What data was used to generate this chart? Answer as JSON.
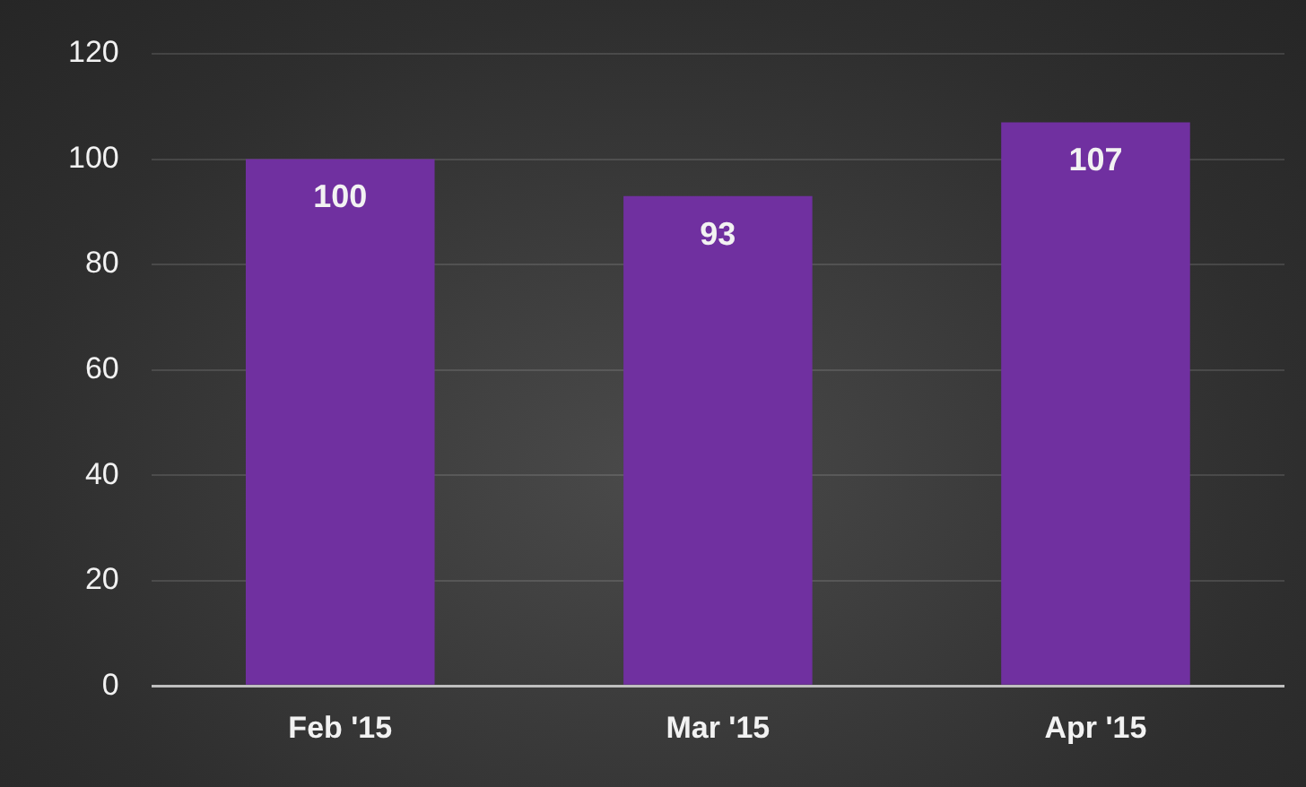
{
  "chart_data": {
    "type": "bar",
    "categories": [
      "Feb '15",
      "Mar '15",
      "Apr '15"
    ],
    "values": [
      100,
      93,
      107
    ],
    "color": "#7030a0",
    "ylim": [
      0,
      120
    ],
    "yticks": [
      0,
      20,
      40,
      60,
      80,
      100,
      120
    ],
    "grid": "y",
    "data_labels": true,
    "legend": false
  }
}
